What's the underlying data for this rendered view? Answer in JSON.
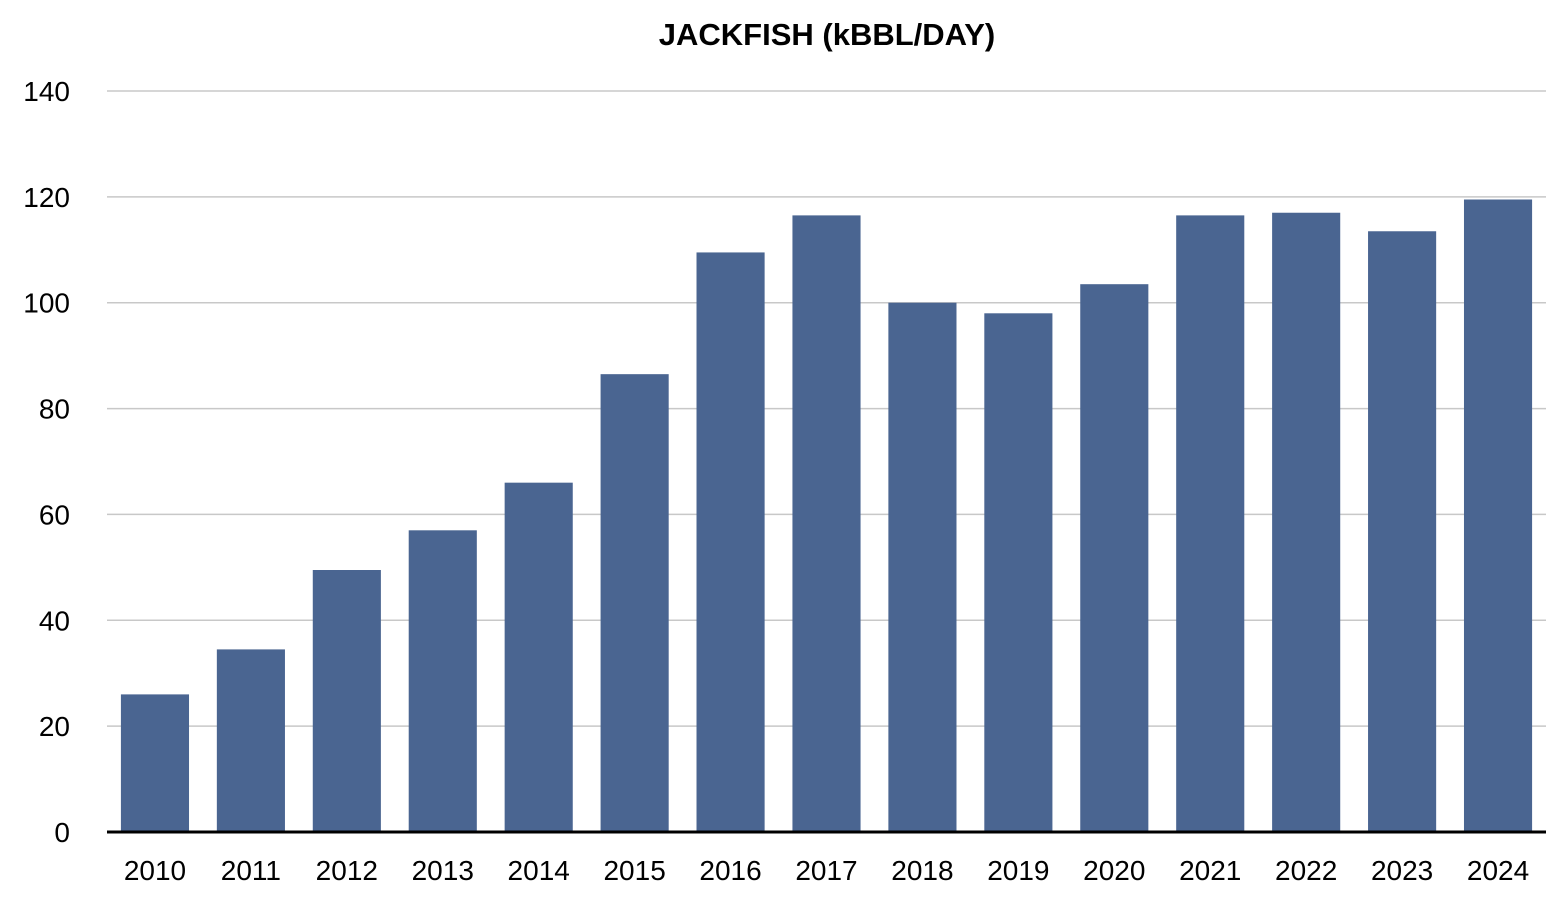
{
  "colors": {
    "bar": "#4a6591",
    "grid": "#c8c8c8",
    "axis": "#000000",
    "background": "#ffffff"
  },
  "chart_data": {
    "type": "bar",
    "title": "JACKFISH (kBBL/DAY)",
    "xlabel": "",
    "ylabel": "",
    "categories": [
      "2010",
      "2011",
      "2012",
      "2013",
      "2014",
      "2015",
      "2016",
      "2017",
      "2018",
      "2019",
      "2020",
      "2021",
      "2022",
      "2023",
      "2024"
    ],
    "values": [
      26,
      34.5,
      49.5,
      57,
      66,
      86.5,
      109.5,
      116.5,
      100,
      98,
      103.5,
      116.5,
      117,
      113.5,
      119.5
    ],
    "ylim": [
      0,
      140
    ],
    "yticks": [
      0,
      20,
      40,
      60,
      80,
      100,
      120,
      140
    ],
    "grid": true,
    "legend": "none"
  }
}
